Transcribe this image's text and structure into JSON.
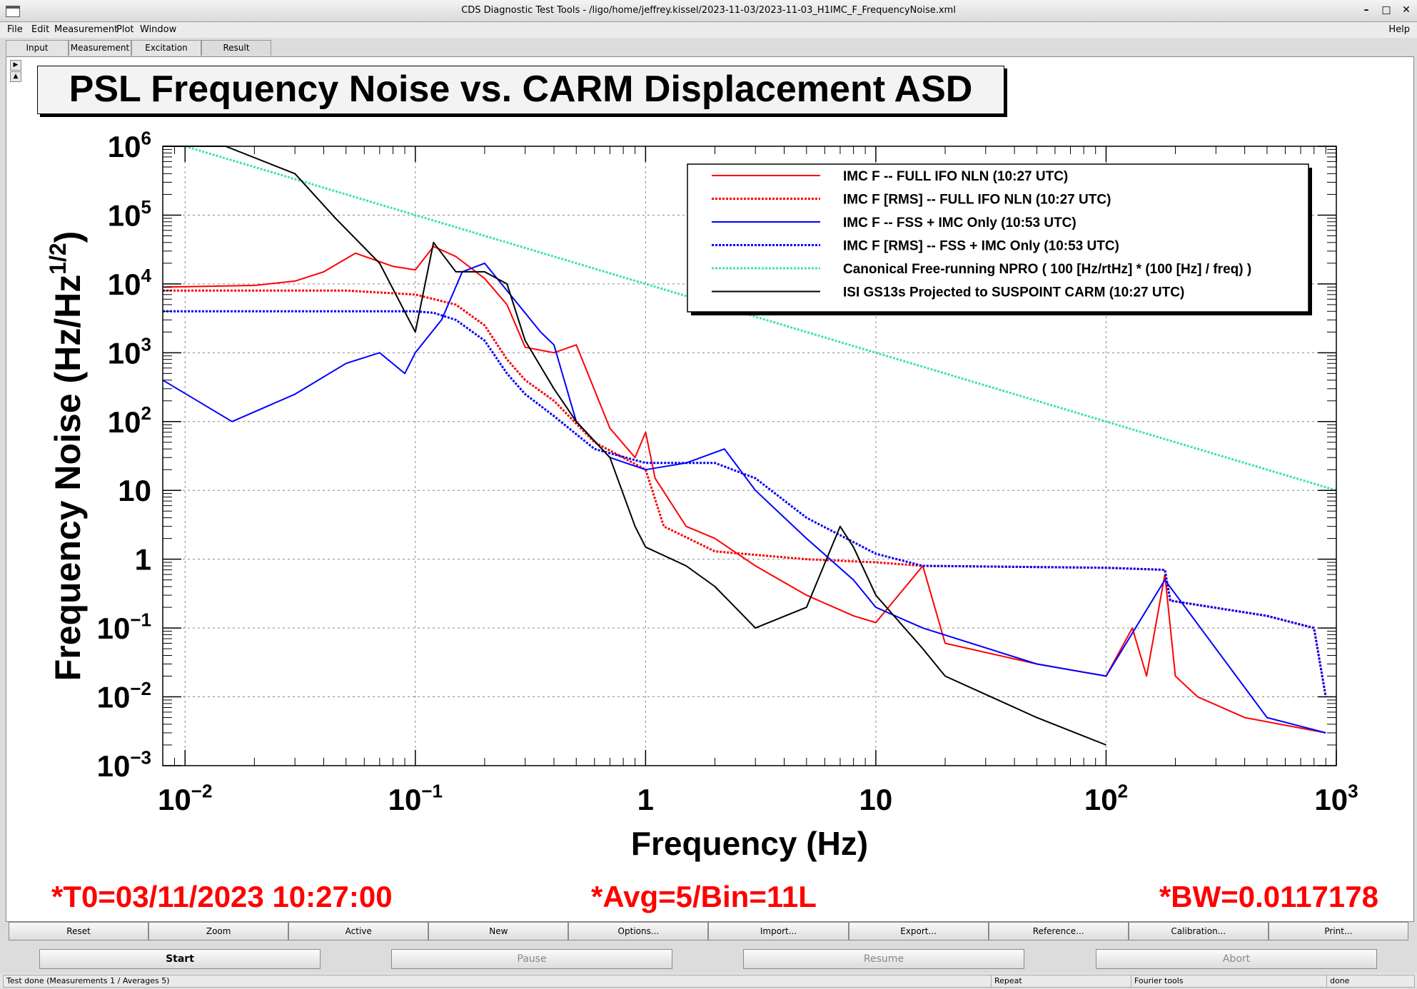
{
  "window": {
    "title": "CDS Diagnostic Test Tools - /ligo/home/jeffrey.kissel/2023-11-03/2023-11-03_H1IMC_F_FrequencyNoise.xml",
    "controls": [
      "–",
      "□",
      "✕"
    ]
  },
  "menubar": {
    "items": [
      "File",
      "Edit",
      "Measurement",
      "Plot",
      "Window"
    ],
    "help": "Help"
  },
  "tabs": [
    "Input",
    "Measurement",
    "Excitation",
    "Result"
  ],
  "plot": {
    "title": "PSL Frequency Noise vs. CARM Displacement ASD",
    "ylabel": "Frequency Noise (Hz/Hz^(1/2))",
    "xlabel": "Frequency (Hz)",
    "y_ticks": [
      "10^6",
      "10^5",
      "10^4",
      "10^3",
      "10^2",
      "10",
      "1",
      "10^-1",
      "10^-2",
      "10^-3"
    ],
    "x_ticks": [
      "10^-2",
      "10^-1",
      "1",
      "10",
      "10^2",
      "10^3"
    ],
    "info_t0": "*T0=03/11/2023 10:27:00",
    "info_avg": "*Avg=5/Bin=11L",
    "info_bw": "*BW=0.0117178"
  },
  "chart_data": {
    "type": "line",
    "title": "PSL Frequency Noise vs. CARM Displacement ASD",
    "xlabel": "Frequency (Hz)",
    "ylabel": "Frequency Noise (Hz/Hz^(1/2))",
    "xscale": "log",
    "yscale": "log",
    "xlim": [
      0.008,
      1000
    ],
    "ylim": [
      0.001,
      1000000
    ],
    "grid": true,
    "legend_position": "top-right",
    "series": [
      {
        "name": "IMC F -- FULL IFO NLN (10:27 UTC)",
        "color": "#ff0000",
        "style": "solid",
        "x": [
          0.008,
          0.02,
          0.03,
          0.04,
          0.055,
          0.08,
          0.1,
          0.12,
          0.15,
          0.2,
          0.25,
          0.3,
          0.4,
          0.5,
          0.7,
          0.9,
          1.0,
          1.1,
          1.5,
          2,
          3,
          5,
          8,
          10,
          16,
          20,
          50,
          100,
          130,
          150,
          180,
          200,
          250,
          400,
          900
        ],
        "y": [
          9000,
          9500,
          11000,
          15000,
          28000,
          18000,
          16000,
          35000,
          25000,
          12000,
          5000,
          1200,
          1000,
          1300,
          80,
          30,
          70,
          15,
          3,
          2,
          0.8,
          0.3,
          0.15,
          0.12,
          0.8,
          0.06,
          0.03,
          0.02,
          0.1,
          0.02,
          0.6,
          0.02,
          0.01,
          0.005,
          0.003
        ]
      },
      {
        "name": "IMC F [RMS] -- FULL IFO NLN (10:27 UTC)",
        "color": "#ff0000",
        "style": "dotted",
        "x": [
          0.008,
          0.05,
          0.1,
          0.15,
          0.2,
          0.25,
          0.3,
          0.4,
          0.6,
          1.0,
          1.2,
          2,
          5,
          10,
          16,
          100,
          180,
          190,
          500,
          800,
          900
        ],
        "y": [
          8000,
          8000,
          7000,
          5000,
          2500,
          800,
          400,
          200,
          50,
          20,
          3,
          1.3,
          1.0,
          0.9,
          0.8,
          0.75,
          0.7,
          0.25,
          0.15,
          0.1,
          0.01
        ]
      },
      {
        "name": "IMC F -- FSS + IMC Only (10:53 UTC)",
        "color": "#0000ff",
        "style": "solid",
        "x": [
          0.008,
          0.016,
          0.03,
          0.05,
          0.07,
          0.09,
          0.1,
          0.13,
          0.16,
          0.2,
          0.25,
          0.35,
          0.4,
          0.5,
          0.7,
          1.0,
          1.5,
          2.2,
          3,
          5,
          8,
          10,
          16,
          50,
          100,
          180,
          500,
          900
        ],
        "y": [
          400,
          100,
          250,
          700,
          1000,
          500,
          1000,
          3000,
          15000,
          20000,
          8000,
          2000,
          1300,
          100,
          30,
          20,
          25,
          40,
          10,
          2,
          0.5,
          0.2,
          0.1,
          0.03,
          0.02,
          0.5,
          0.005,
          0.003
        ]
      },
      {
        "name": "IMC F [RMS] -- FSS + IMC Only (10:53 UTC)",
        "color": "#0000ff",
        "style": "dotted",
        "x": [
          0.008,
          0.1,
          0.12,
          0.15,
          0.2,
          0.25,
          0.3,
          0.4,
          0.6,
          1.0,
          2,
          3,
          5,
          10,
          16,
          100,
          180,
          190,
          500,
          800,
          900
        ],
        "y": [
          4000,
          4000,
          3800,
          3000,
          1500,
          500,
          250,
          120,
          40,
          25,
          25,
          15,
          4,
          1.2,
          0.8,
          0.75,
          0.7,
          0.25,
          0.15,
          0.1,
          0.01
        ]
      },
      {
        "name": "Canonical Free-running NPRO ( 100 [Hz/rtHz] * (100 [Hz] / freq) )",
        "color": "#40e0b0",
        "style": "dotted",
        "x": [
          0.01,
          1000
        ],
        "y": [
          1000000,
          10
        ]
      },
      {
        "name": "ISI GS13s Projected to SUSPOINT CARM (10:27 UTC)",
        "color": "#000000",
        "style": "solid",
        "x": [
          0.008,
          0.015,
          0.03,
          0.045,
          0.07,
          0.1,
          0.12,
          0.15,
          0.2,
          0.25,
          0.3,
          0.4,
          0.5,
          0.7,
          0.9,
          1.0,
          1.5,
          2,
          3,
          5,
          7,
          8,
          10,
          16,
          20,
          50,
          100
        ],
        "y": [
          1000000,
          1000000,
          400000,
          90000,
          20000,
          2000,
          40000,
          15000,
          15000,
          10000,
          1500,
          300,
          100,
          30,
          3,
          1.5,
          0.8,
          0.4,
          0.1,
          0.2,
          3,
          1.5,
          0.3,
          0.05,
          0.02,
          0.005,
          0.002
        ]
      }
    ]
  },
  "buttons_row1": [
    "Reset",
    "Zoom",
    "Active",
    "New",
    "Options...",
    "Import...",
    "Export...",
    "Reference...",
    "Calibration...",
    "Print..."
  ],
  "buttons_row2": {
    "start": "Start",
    "pause": "Pause",
    "resume": "Resume",
    "abort": "Abort"
  },
  "status": {
    "message": "Test done (Measurements 1 / Averages 5)",
    "repeat": "Repeat",
    "fourier": "Fourier tools",
    "done": "done"
  }
}
